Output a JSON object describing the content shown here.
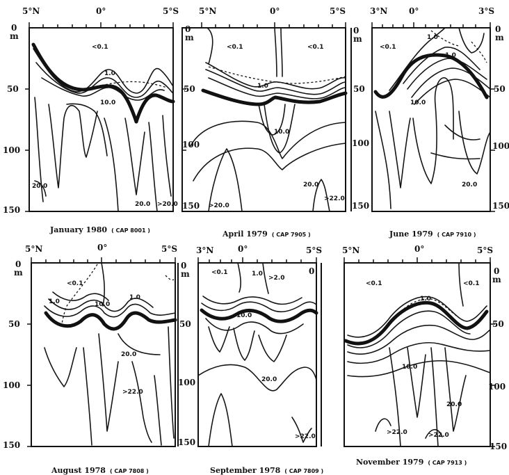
{
  "figure": {
    "lat_labels": {
      "north": "5°N",
      "equator": "0°",
      "south": "5°S",
      "north3": "3°N",
      "south3": "3°S"
    },
    "depth_unit": "m",
    "depth_ticks": [
      "0",
      "50",
      "100",
      "150"
    ],
    "contour_values": {
      "lt01": "<0.1",
      "one": "1.0",
      "ten": "10.0",
      "twenty": "20.0",
      "gt20": ">20.0",
      "gt22": ">22.0"
    },
    "panels": [
      {
        "id": "jan1980",
        "title": "January 1980",
        "cruise": "( CAP 8001 )"
      },
      {
        "id": "apr1979",
        "title": "April 1979",
        "cruise": "( CAP 7905 )"
      },
      {
        "id": "jun1979",
        "title": "June 1979",
        "cruise": "( CAP 7910 )"
      },
      {
        "id": "aug1978",
        "title": "August 1978",
        "cruise": "( CAP 7808 )"
      },
      {
        "id": "sep1978",
        "title": "September 1978",
        "cruise": "( CAP 7809 )"
      },
      {
        "id": "nov1979",
        "title": "November 1979",
        "cruise": "( CAP 7913 )"
      }
    ]
  }
}
